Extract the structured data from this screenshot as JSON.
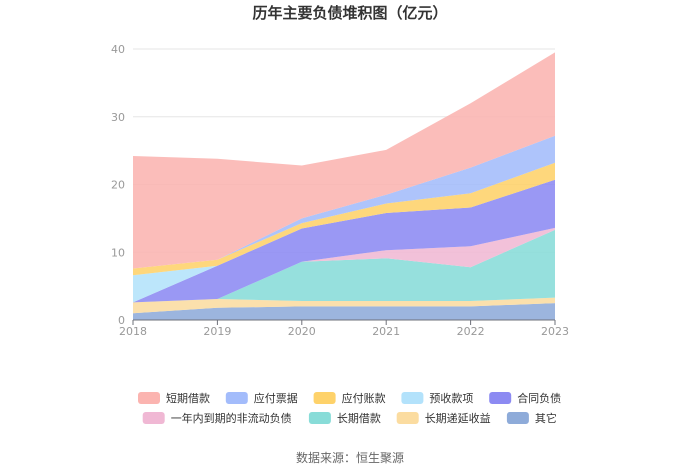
{
  "chart_data": {
    "type": "area",
    "stacked": true,
    "title": "历年主要负债堆积图（亿元）",
    "source": "数据来源：恒生聚源",
    "x": [
      "2018",
      "2019",
      "2020",
      "2021",
      "2022",
      "2023"
    ],
    "yticks": [
      "0",
      "10",
      "20",
      "30",
      "40"
    ],
    "ylim": [
      0,
      40
    ],
    "grid": true,
    "legend_position": "bottom",
    "series": [
      {
        "name": "其它",
        "color": "#8eabd9",
        "values": [
          1.0,
          1.8,
          2.0,
          2.0,
          2.0,
          2.5
        ]
      },
      {
        "name": "长期递延收益",
        "color": "#fbdca0",
        "values": [
          1.6,
          1.3,
          0.8,
          0.8,
          0.8,
          0.8
        ]
      },
      {
        "name": "长期借款",
        "color": "#88dcd8",
        "values": [
          0.0,
          0.0,
          5.8,
          6.3,
          5.0,
          10.0
        ]
      },
      {
        "name": "一年内到期的非流动负债",
        "color": "#f0b8d4",
        "values": [
          0.0,
          0.0,
          0.0,
          1.2,
          3.1,
          0.3
        ]
      },
      {
        "name": "合同负债",
        "color": "#8c8af2",
        "values": [
          0.0,
          4.9,
          4.9,
          5.5,
          5.7,
          7.1
        ]
      },
      {
        "name": "预收款项",
        "color": "#b3e2fb",
        "values": [
          4.0,
          0.0,
          0.0,
          0.0,
          0.0,
          0.0
        ]
      },
      {
        "name": "应付账款",
        "color": "#fed26a",
        "values": [
          1.0,
          0.9,
          0.8,
          1.4,
          2.1,
          2.5
        ]
      },
      {
        "name": "应付票据",
        "color": "#a3bcfb",
        "values": [
          0.0,
          0.0,
          0.7,
          1.3,
          3.8,
          4.0
        ]
      },
      {
        "name": "短期借款",
        "color": "#fbb4b0",
        "values": [
          16.6,
          14.9,
          7.8,
          6.6,
          9.5,
          12.3
        ]
      }
    ],
    "legend_order": [
      "短期借款",
      "应付票据",
      "应付账款",
      "预收款项",
      "合同负债",
      "一年内到期的非流动负债",
      "长期借款",
      "长期递延收益",
      "其它"
    ]
  }
}
